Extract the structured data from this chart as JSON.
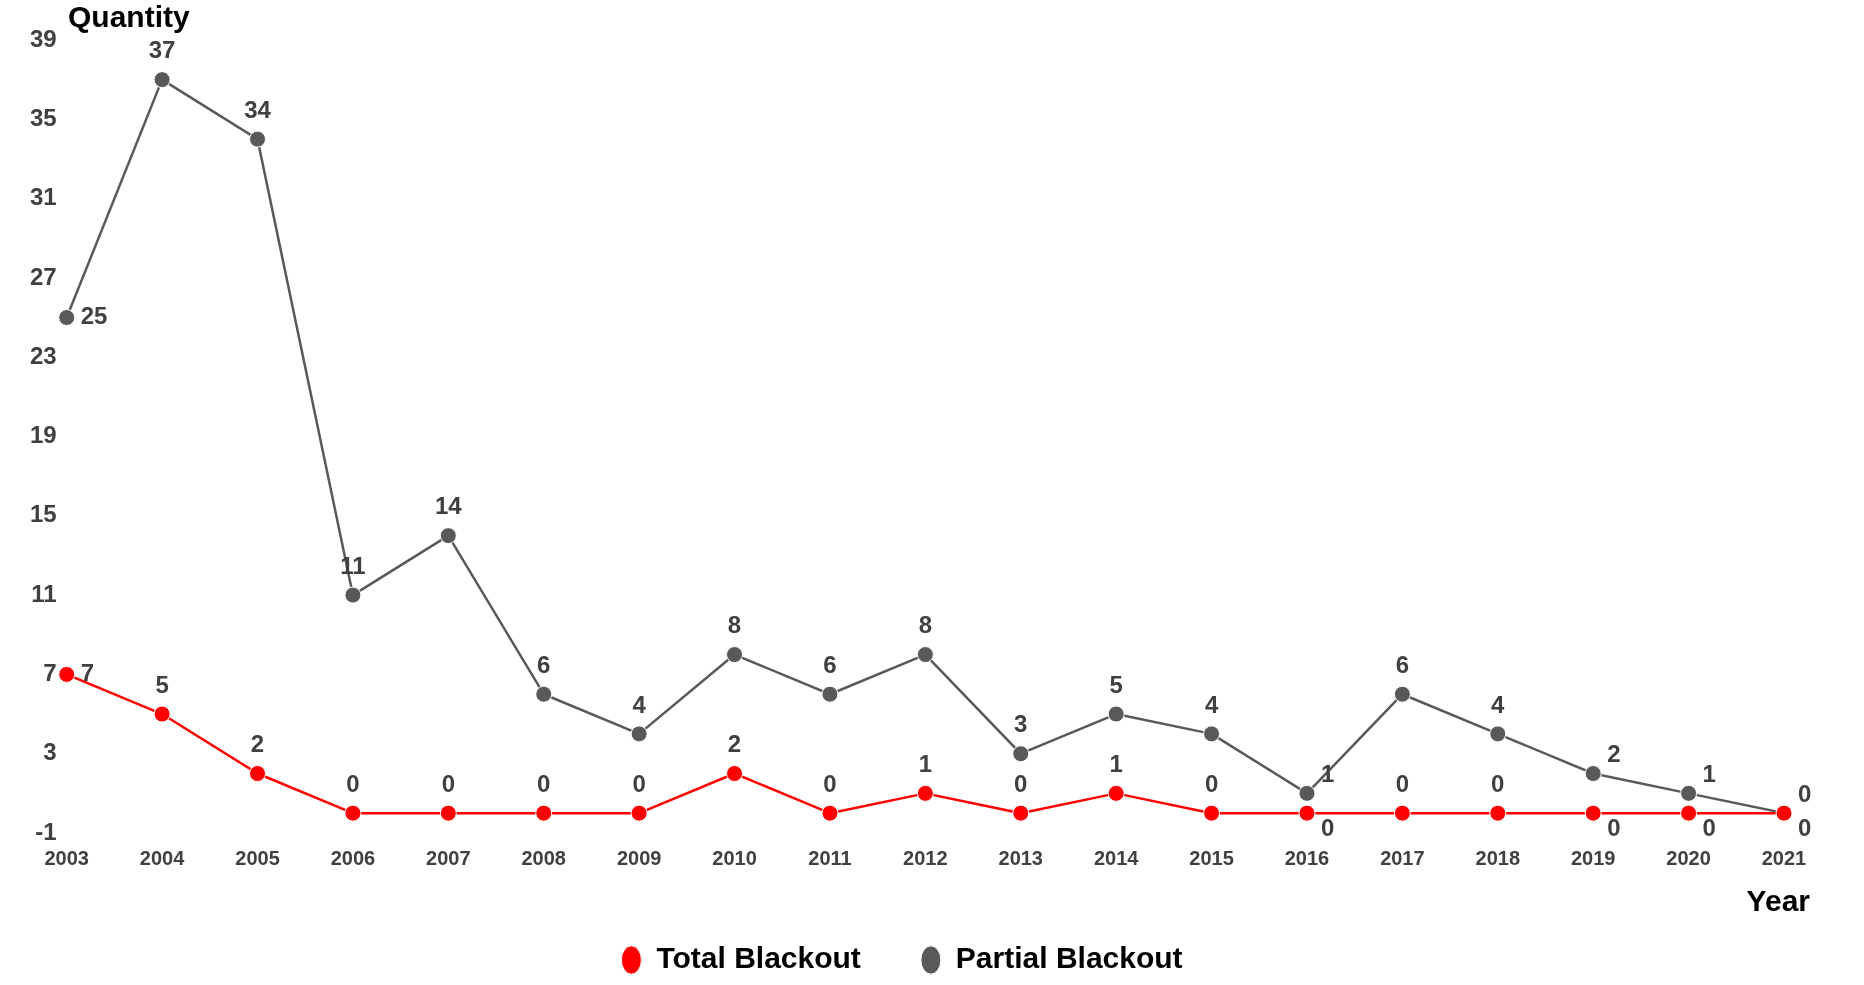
{
  "chart_data": {
    "type": "line",
    "xlabel": "Year",
    "ylabel": "Quantity",
    "categories": [
      "2003",
      "2004",
      "2005",
      "2006",
      "2007",
      "2008",
      "2009",
      "2010",
      "2011",
      "2012",
      "2013",
      "2014",
      "2015",
      "2016",
      "2017",
      "2018",
      "2019",
      "2020",
      "2021"
    ],
    "series": [
      {
        "name": "Total Blackout",
        "color": "#ff0000",
        "values": [
          7,
          5,
          2,
          0,
          0,
          0,
          0,
          2,
          0,
          1,
          0,
          1,
          0,
          0,
          0,
          0,
          0,
          0,
          0
        ]
      },
      {
        "name": "Partial Blackout",
        "color": "#595959",
        "values": [
          25,
          37,
          34,
          11,
          14,
          6,
          4,
          8,
          6,
          8,
          3,
          5,
          4,
          1,
          6,
          4,
          2,
          1,
          0
        ]
      }
    ],
    "ylim": [
      -1,
      39
    ],
    "yticks": [
      -1,
      3,
      7,
      11,
      15,
      19,
      23,
      27,
      31,
      35,
      39
    ],
    "grid": false,
    "legend": "bottom",
    "marker": "circle",
    "line_style": "solid",
    "data_labels": true
  }
}
